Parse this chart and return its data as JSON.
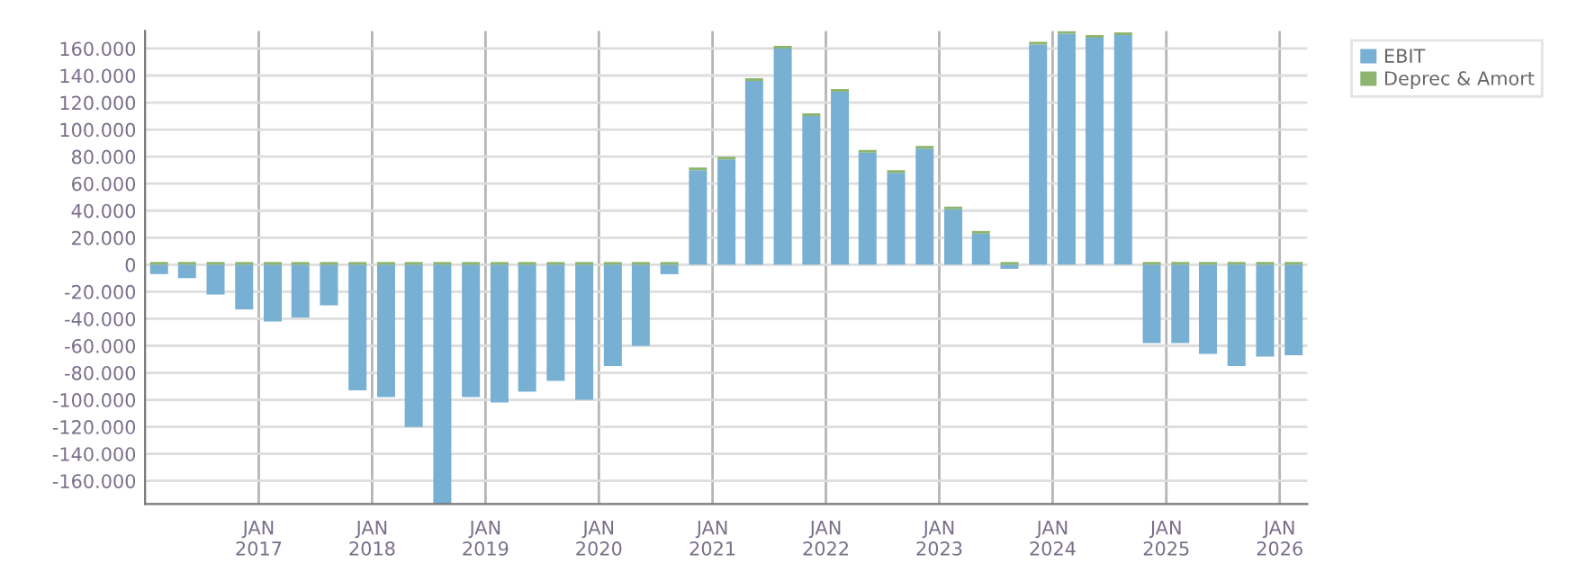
{
  "chart_data": {
    "type": "bar",
    "stacked": true,
    "grid": true,
    "legend": "top right",
    "x": [
      "2016-02-15",
      "2016-05-15",
      "2016-08-15",
      "2016-11-15",
      "2017-02-15",
      "2017-05-15",
      "2017-08-15",
      "2017-11-15",
      "2018-02-15",
      "2018-05-15",
      "2018-08-15",
      "2018-11-15",
      "2019-02-15",
      "2019-05-15",
      "2019-08-15",
      "2019-11-15",
      "2020-02-15",
      "2020-05-15",
      "2020-08-15",
      "2020-11-15",
      "2021-02-15",
      "2021-05-15",
      "2021-08-15",
      "2021-11-15",
      "2022-02-15",
      "2022-05-15",
      "2022-08-15",
      "2022-11-15",
      "2023-02-15",
      "2023-05-15",
      "2023-08-15",
      "2023-11-15",
      "2024-02-15",
      "2024-05-15",
      "2024-08-15",
      "2024-11-15",
      "2025-02-15",
      "2025-05-15",
      "2025-08-15",
      "2025-11-15",
      "2026-02-15"
    ],
    "series": [
      {
        "name": "EBIT",
        "color": "#78b0d3",
        "values": [
          -7000,
          -10000,
          -22000,
          -33000,
          -42000,
          -39000,
          -30000,
          -93000,
          -98000,
          -120000,
          -177000,
          -98000,
          -102000,
          -94000,
          -86000,
          -100000,
          -75000,
          -60000,
          -7000,
          70000,
          78000,
          136000,
          160000,
          110000,
          128000,
          83000,
          68000,
          86000,
          41000,
          23000,
          -3000,
          163000,
          171000,
          168000,
          170000,
          -58000,
          -58000,
          -66000,
          -75000,
          -68000,
          -67000
        ]
      },
      {
        "name": "Deprec & Amort",
        "color": "#8db56f",
        "values": [
          2000,
          2000,
          2000,
          2000,
          2000,
          2000,
          2000,
          2000,
          2000,
          2000,
          2000,
          2000,
          2000,
          2000,
          2000,
          2000,
          2000,
          2000,
          2000,
          2000,
          2000,
          2000,
          2000,
          2000,
          2000,
          2000,
          2000,
          2000,
          2000,
          2000,
          2000,
          2000,
          2000,
          2000,
          2000,
          2000,
          2000,
          2000,
          2000,
          2000,
          2000
        ]
      }
    ],
    "xlim": [
      "2016-01-01",
      "2026-03-31"
    ],
    "xticks": [
      {
        "value": "2017-01-01",
        "label": "JAN\n2017"
      },
      {
        "value": "2018-01-01",
        "label": "JAN\n2018"
      },
      {
        "value": "2019-01-01",
        "label": "JAN\n2019"
      },
      {
        "value": "2020-01-01",
        "label": "JAN\n2020"
      },
      {
        "value": "2021-01-01",
        "label": "JAN\n2021"
      },
      {
        "value": "2022-01-01",
        "label": "JAN\n2022"
      },
      {
        "value": "2023-01-01",
        "label": "JAN\n2023"
      },
      {
        "value": "2024-01-01",
        "label": "JAN\n2024"
      },
      {
        "value": "2025-01-01",
        "label": "JAN\n2025"
      },
      {
        "value": "2026-01-01",
        "label": "JAN\n2026"
      }
    ],
    "ylim": [
      -177000,
      173000
    ],
    "yticks": [
      {
        "value": -160000,
        "label": "-160.000"
      },
      {
        "value": -140000,
        "label": "-140.000"
      },
      {
        "value": -120000,
        "label": "-120.000"
      },
      {
        "value": -100000,
        "label": "-100.000"
      },
      {
        "value": -80000,
        "label": "-80.000"
      },
      {
        "value": -60000,
        "label": "-60.000"
      },
      {
        "value": -40000,
        "label": "-40.000"
      },
      {
        "value": -20000,
        "label": "-20.000"
      },
      0,
      {
        "value": 20000,
        "label": "20.000"
      },
      {
        "value": 40000,
        "label": "40.000"
      },
      {
        "value": 60000,
        "label": "60.000"
      },
      {
        "value": 80000,
        "label": "80.000"
      },
      {
        "value": 100000,
        "label": "100.000"
      },
      {
        "value": 120000,
        "label": "120.000"
      },
      {
        "value": 140000,
        "label": "140.000"
      },
      {
        "value": 160000,
        "label": "160.000"
      }
    ]
  }
}
